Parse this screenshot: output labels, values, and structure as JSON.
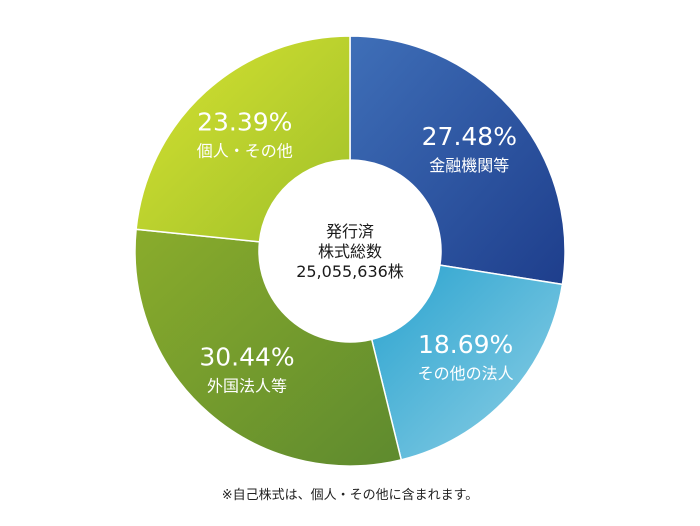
{
  "chart_data": {
    "type": "pie",
    "donut": true,
    "title": "",
    "center_label": [
      "発行済",
      "株式総数",
      "25,055,636株"
    ],
    "categories": [
      "金融機関等",
      "その他の法人",
      "外国法人等",
      "個人・その他"
    ],
    "values": [
      27.48,
      18.69,
      30.44,
      23.39
    ],
    "value_labels": [
      "27.48%",
      "18.69%",
      "30.44%",
      "23.39%"
    ],
    "colors": [
      [
        "#3f6fb8",
        "#1e3e8c"
      ],
      [
        "#2aa3cf",
        "#8fd0e6"
      ],
      [
        "#8aac2c",
        "#5e8a2e"
      ],
      [
        "#d6e231",
        "#9fc02a"
      ]
    ],
    "start_angle_deg": 0,
    "direction": "clockwise"
  },
  "footnote": "※自己株式は、個人・その他に含まれます。"
}
